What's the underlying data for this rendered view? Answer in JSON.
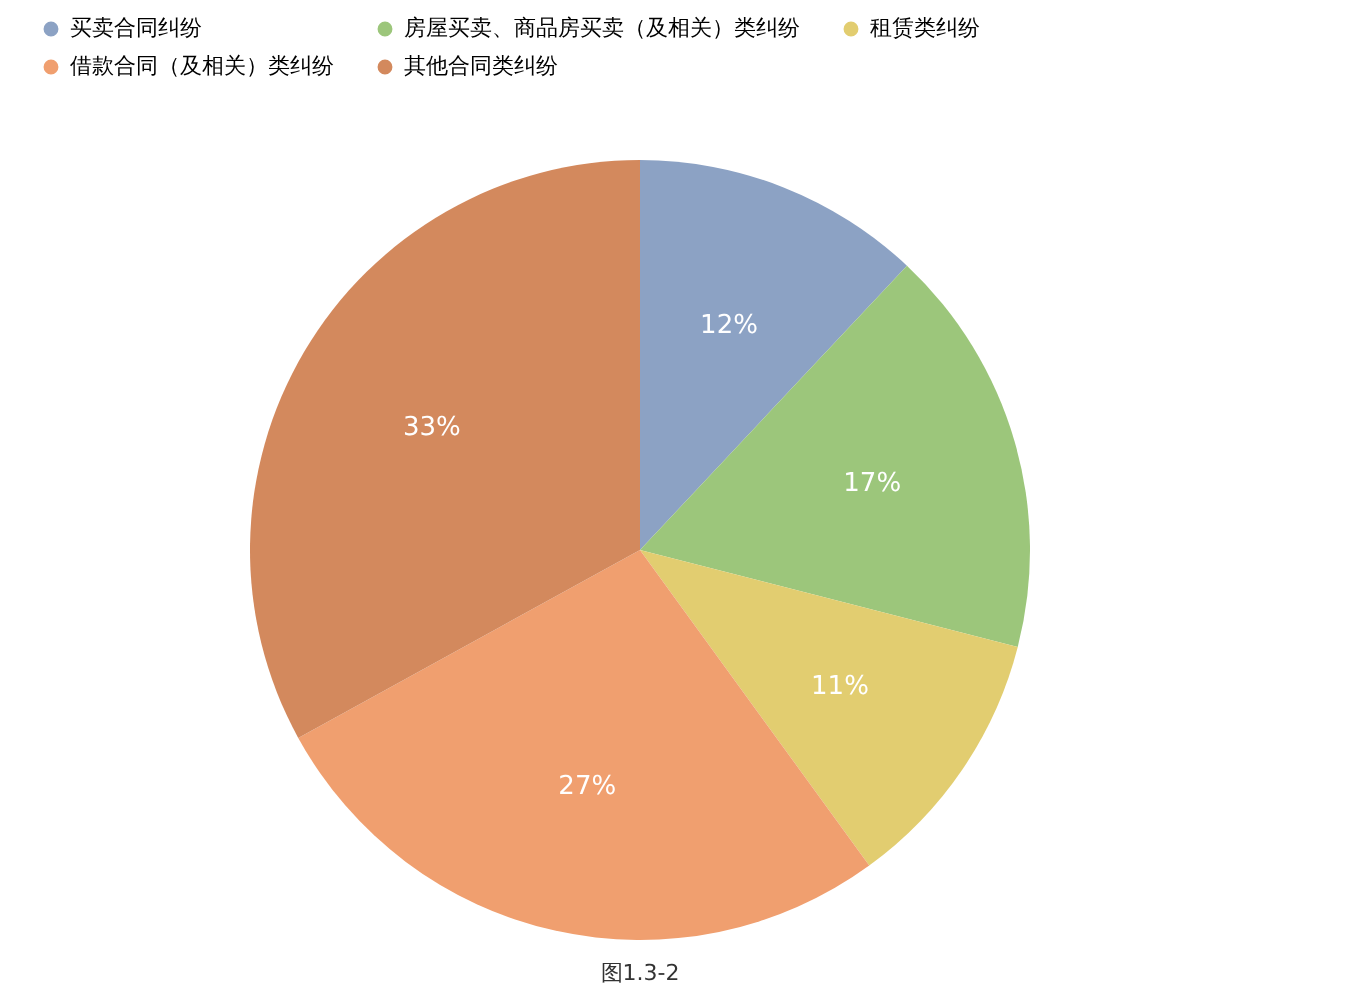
{
  "chart_data": {
    "type": "pie",
    "categories": [
      "买卖合同纠纷",
      "房屋买卖、商品房买卖（及相关）类纠纷",
      "租赁类纠纷",
      "借款合同（及相关）类纠纷",
      "其他合同类纠纷"
    ],
    "values": [
      12,
      17,
      11,
      27,
      33
    ],
    "colors": [
      "#8ca2c4",
      "#9cc67b",
      "#e2cd70",
      "#f09f6f",
      "#d3895d"
    ],
    "data_labels": true,
    "value_labels": [
      "12%",
      "17%",
      "11%",
      "27%",
      "33%"
    ],
    "legend": "top left",
    "annotations": [
      "图1.3-2"
    ]
  }
}
